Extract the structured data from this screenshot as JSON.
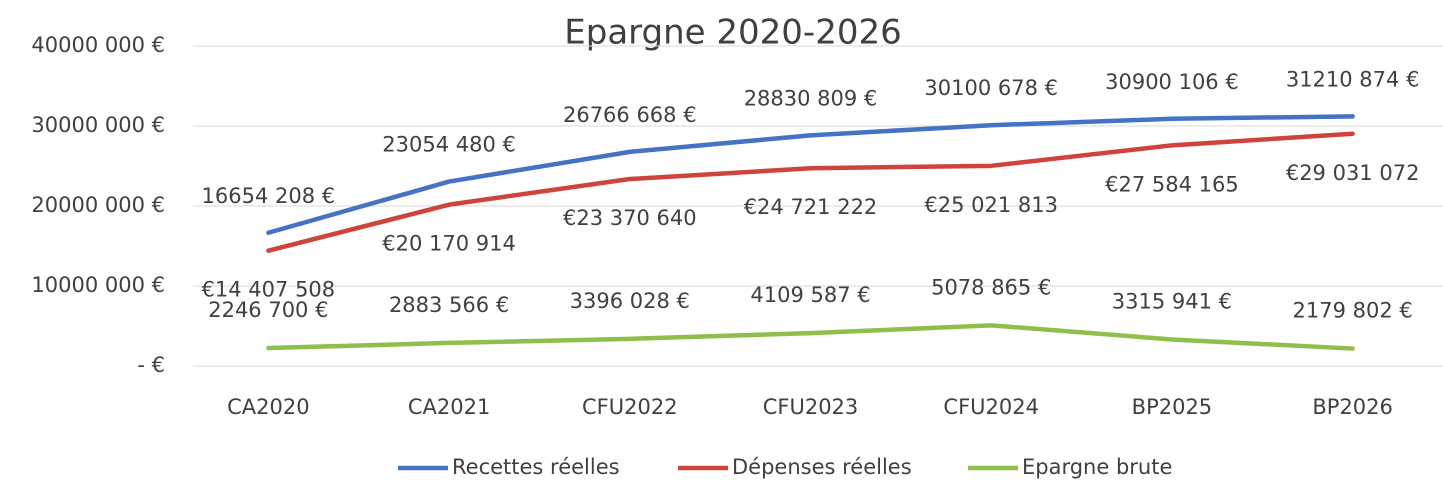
{
  "chart_data": {
    "type": "line",
    "title": "Epargne 2020-2026",
    "categories": [
      "CA2020",
      "CA2021",
      "CFU2022",
      "CFU2023",
      "CFU2024",
      "BP2025",
      "BP2026"
    ],
    "series": [
      {
        "name": "Recettes réelles",
        "color": "#4472c4",
        "values": [
          16654208,
          23054480,
          26766668,
          28830809,
          30100678,
          30900106,
          31210874
        ],
        "value_labels": [
          "16654 208 €",
          "23054 480 €",
          "26766 668 €",
          "28830 809 €",
          "30100 678 €",
          "30900 106 €",
          "31210 874 €"
        ]
      },
      {
        "name": "Dépenses réelles",
        "color": "#d0433d",
        "values": [
          14407508,
          20170914,
          23370640,
          24721222,
          25021813,
          27584165,
          29031072
        ],
        "value_labels": [
          "€14 407 508",
          "€20 170 914",
          "€23 370 640",
          "€24 721 222",
          "€25 021 813",
          "€27 584 165",
          "€29 031 072"
        ]
      },
      {
        "name": "Epargne brute",
        "color": "#8fbf4a",
        "values": [
          2246700,
          2883566,
          3396028,
          4109587,
          5078865,
          3315941,
          2179802
        ],
        "value_labels": [
          "2246 700 €",
          "2883 566 €",
          "3396 028 €",
          "4109 587 €",
          "5078 865 €",
          "3315 941 €",
          "2179 802 €"
        ]
      }
    ],
    "ylim": [
      0,
      40000000
    ],
    "yticks": [
      {
        "value": 0,
        "label": "-  €"
      },
      {
        "value": 10000000,
        "label": "10000 000 €"
      },
      {
        "value": 20000000,
        "label": "20000 000 €"
      },
      {
        "value": 30000000,
        "label": "30000 000 €"
      },
      {
        "value": 40000000,
        "label": "40000 000 €"
      }
    ],
    "grid": true,
    "legend": "bottom"
  }
}
